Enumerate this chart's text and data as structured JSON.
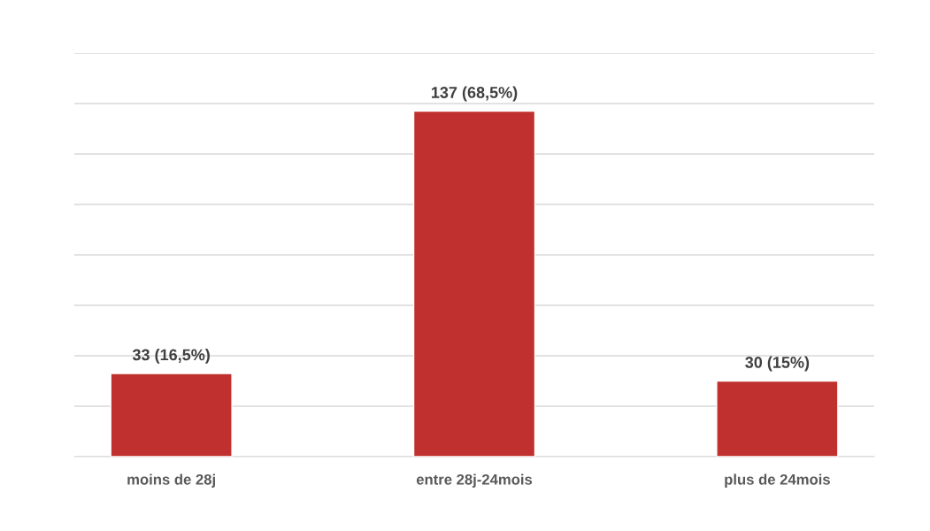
{
  "chart_data": {
    "type": "bar",
    "categories": [
      "moins de 28j",
      "entre 28j-24mois",
      "plus de 24mois"
    ],
    "values": [
      33,
      137,
      30
    ],
    "value_labels": [
      "33 (16,5%)",
      "137 (68,5%)",
      "30 (15%)"
    ],
    "color": "#c0302e",
    "ylim": [
      0,
      160
    ],
    "yticks": [
      {
        "value": 0,
        "label": null
      },
      {
        "value": 20,
        "label": null
      },
      {
        "value": 40,
        "label": null
      },
      {
        "value": 60,
        "label": null
      },
      {
        "value": 80,
        "label": null
      },
      {
        "value": 100,
        "label": null
      },
      {
        "value": 120,
        "label": null
      },
      {
        "value": 140,
        "label": null
      },
      {
        "value": 160,
        "label": null
      }
    ],
    "tick_labels": "x",
    "grid": "y"
  }
}
